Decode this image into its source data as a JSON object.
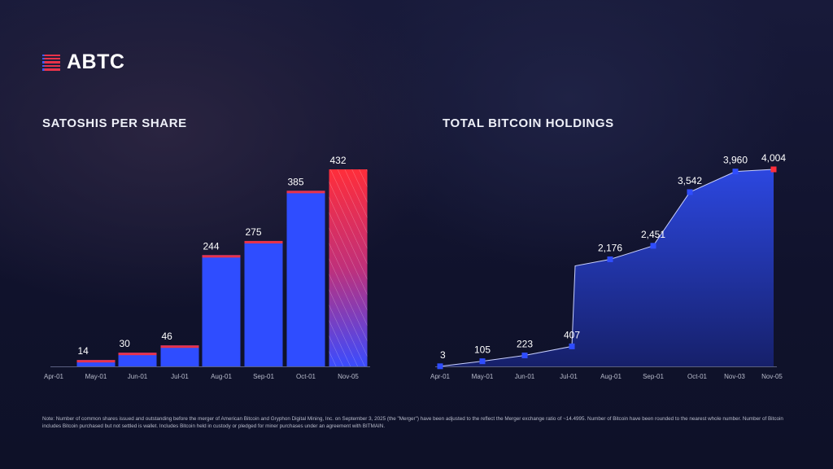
{
  "brand": {
    "name": "ABTC"
  },
  "colors": {
    "bar": "#2f4dff",
    "cap": "#e8334a",
    "highlight": "#ff2e3a",
    "area": "#2a44d8",
    "line": "#c8d0ff"
  },
  "chart_data": [
    {
      "type": "bar",
      "title": "SATOSHIS PER SHARE",
      "categories": [
        "Apr-01",
        "May-01",
        "Jun-01",
        "Jul-01",
        "Aug-01",
        "Sep-01",
        "Oct-01",
        "Nov-05"
      ],
      "values": [
        null,
        14,
        30,
        46,
        244,
        275,
        385,
        432
      ],
      "data_labels": [
        "",
        "14",
        "30",
        "46",
        "244",
        "275",
        "385",
        "432"
      ],
      "highlight_last": true,
      "grid": false
    },
    {
      "type": "area",
      "title": "TOTAL BITCOIN HOLDINGS",
      "x": [
        "Apr-01",
        "May-01",
        "Jun-01",
        "Jul-01",
        "Aug-01",
        "Sep-01",
        "Oct-01",
        "Nov-03",
        "Nov-05"
      ],
      "values": [
        3,
        105,
        223,
        407,
        2176,
        2451,
        3542,
        3960,
        4004
      ],
      "data_labels": [
        "3",
        "105",
        "223",
        "407",
        "2,176",
        "2,451",
        "3,542",
        "3,960",
        "4,004"
      ],
      "highlight_last": true,
      "grid": false
    }
  ],
  "footnote": "Note: Number of common shares issued and outstanding before the merger of American Bitcoin and Gryphon Digital Mining, Inc. on September 3, 2025 (the \"Merger\") have been adjusted to the reflect the Merger exchange ratio of ~14.4995. Number of Bitcoin have been rounded to the nearest whole number. Number of Bitcoin includes Bitcoin purchased but not settled is wallet. Includes Bitcoin held in custody or pledged for miner purchases under an agreement with BITMAIN."
}
